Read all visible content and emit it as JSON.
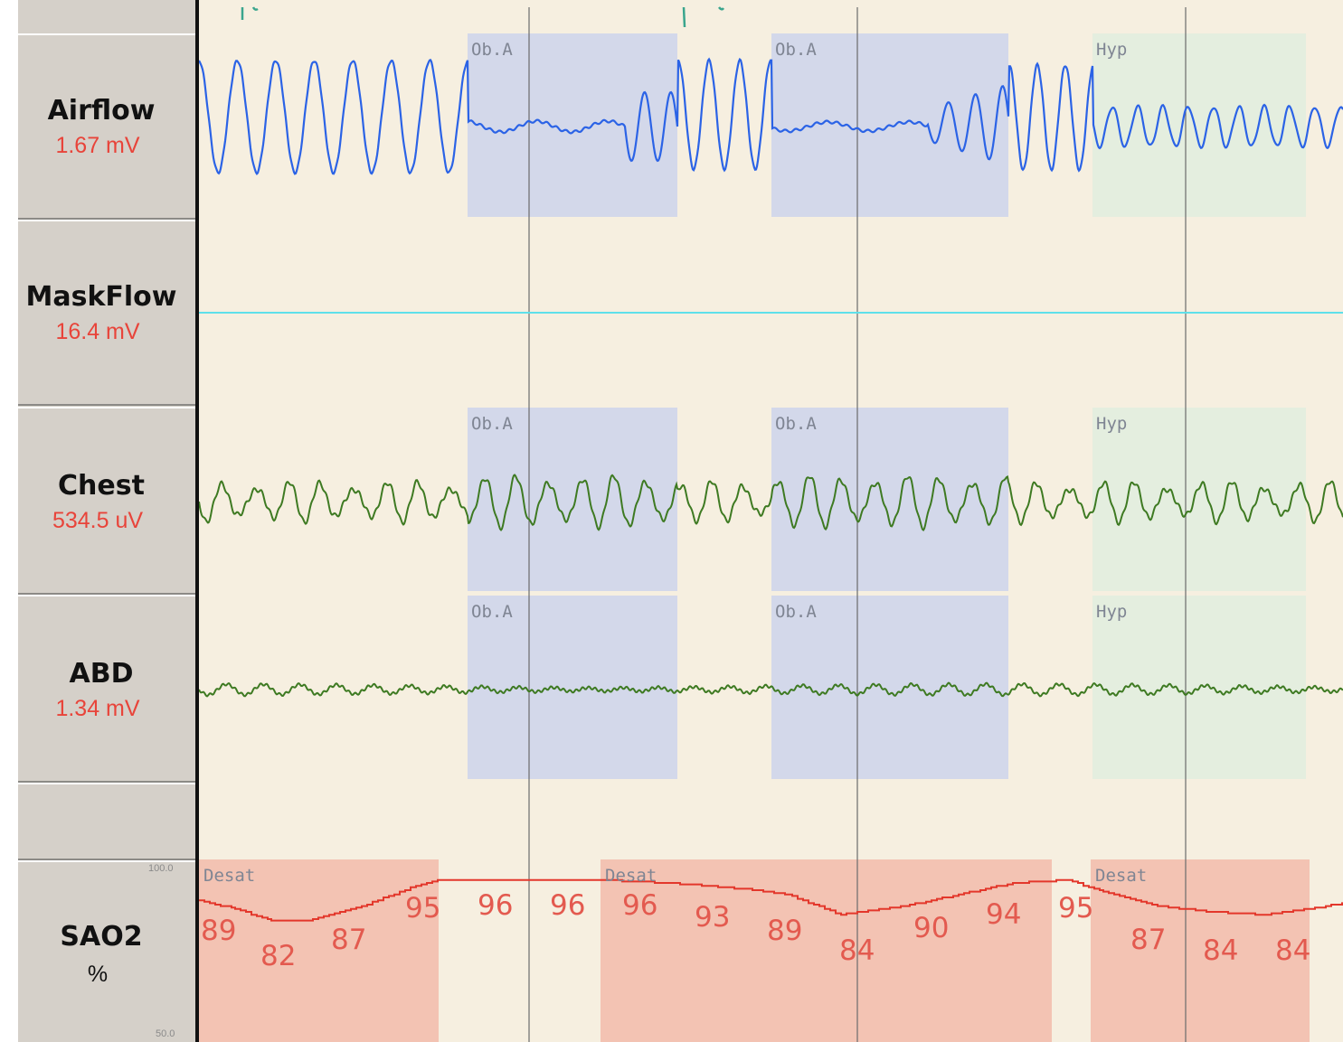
{
  "channels": [
    {
      "name": "Airflow",
      "value": "1.67 mV"
    },
    {
      "name": "MaskFlow",
      "value": "16.4 mV"
    },
    {
      "name": "Chest",
      "value": "534.5 uV"
    },
    {
      "name": "ABD",
      "value": "1.34 mV"
    },
    {
      "name": "SAO2",
      "unit": "%"
    }
  ],
  "sao2_axis": {
    "max_label": "100.0",
    "min_label": "50.0"
  },
  "event_labels": {
    "obstructive_apnea": "Ob.A",
    "hypopnea": "Hyp",
    "desaturation": "Desat"
  },
  "sao2_readings": [
    {
      "label": "89",
      "value": 89
    },
    {
      "label": "82",
      "value": 82
    },
    {
      "label": "87",
      "value": 87
    },
    {
      "label": "95",
      "value": 95
    },
    {
      "label": "96",
      "value": 96
    },
    {
      "label": "96",
      "value": 96
    },
    {
      "label": "96",
      "value": 96
    },
    {
      "label": "93",
      "value": 93
    },
    {
      "label": "89",
      "value": 89
    },
    {
      "label": "84",
      "value": 84
    },
    {
      "label": "90",
      "value": 90
    },
    {
      "label": "94",
      "value": 94
    },
    {
      "label": "95",
      "value": 95
    },
    {
      "label": "87",
      "value": 87
    },
    {
      "label": "84",
      "value": 84
    },
    {
      "label": "84",
      "value": 84
    }
  ],
  "colors": {
    "plot_background": "#f6efe0",
    "sidebar_background": "#d5d0c9",
    "airflow_trace": "#2b63e6",
    "maskflow_trace": "#5fe0ea",
    "effort_trace": "#3e7a22",
    "sao2_trace": "#e3372b",
    "sao2_value_text": "#e35a4f",
    "obstructive_apnea_band": "#d3d8ea",
    "hypopnea_band": "#e4eedf",
    "desaturation_band": "#f3c3b3"
  }
}
